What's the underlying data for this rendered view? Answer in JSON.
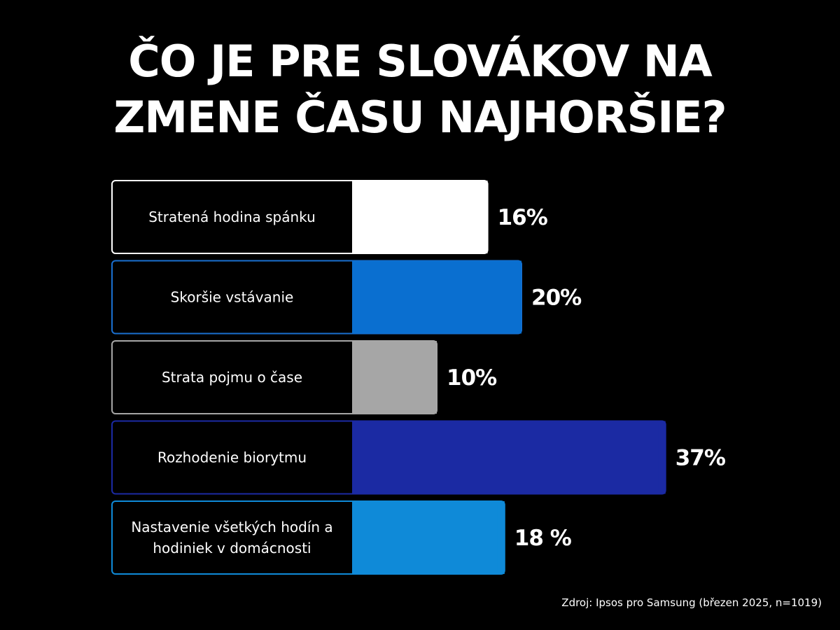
{
  "title_lines": [
    "ČO JE PRE SLOVÁKOV NA",
    "ZMENE ČASU NAJHORŠIE?"
  ],
  "source": "Zdroj: Ipsos pro Samsung (březen 2025, n=1019)",
  "chart_data": {
    "type": "bar",
    "orientation": "horizontal",
    "title": "ČO JE PRE SLOVÁKOV NA ZMENE ČASU NAJHORŠIE?",
    "categories": [
      "Stratená hodina spánku",
      "Skoršie vstávanie",
      "Strata pojmu o čase",
      "Rozhodenie biorytmu",
      "Nastavenie všetkých hodín a hodiniek v domácnosti"
    ],
    "category_lines": [
      [
        "Stratená hodina spánku"
      ],
      [
        "Skoršie vstávanie"
      ],
      [
        "Strata pojmu o čase"
      ],
      [
        "Rozhodenie biorytmu"
      ],
      [
        "Nastavenie všetkých hodín a",
        "hodiniek v domácnosti"
      ]
    ],
    "values": [
      16,
      20,
      10,
      37,
      18
    ],
    "value_labels": [
      "16%",
      "20%",
      "10%",
      "37%",
      "18 %"
    ],
    "colors": [
      "#ffffff",
      "#0a6fd0",
      "#a6a6a6",
      "#1b2aa3",
      "#0f8ad8"
    ],
    "border_colors": [
      "#ffffff",
      "#1a6fd0",
      "#a6a6a6",
      "#1b2aa3",
      "#0f8ad8"
    ],
    "unit": "%",
    "grid": false,
    "legend": false
  }
}
